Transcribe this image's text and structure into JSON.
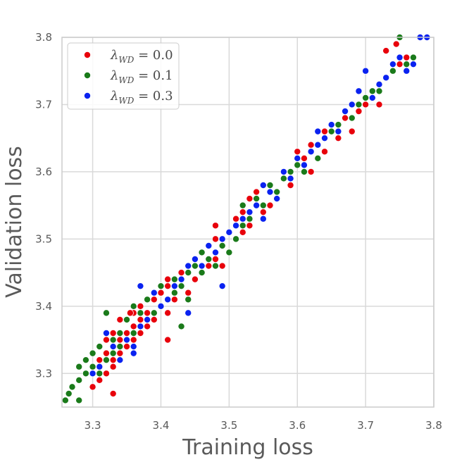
{
  "chart_data": {
    "type": "scatter",
    "title": "",
    "xlabel": "Training loss",
    "ylabel": "Validation loss",
    "xlim": [
      3.255,
      3.8
    ],
    "ylim": [
      3.25,
      3.8
    ],
    "xticks": [
      "3.3",
      "3.4",
      "3.5",
      "3.6",
      "3.7",
      "3.8"
    ],
    "yticks": [
      "3.3",
      "3.4",
      "3.5",
      "3.6",
      "3.7",
      "3.8"
    ],
    "grid": true,
    "legend_position": "top-left",
    "series": [
      {
        "name": "λ_WD = 0.0",
        "legend_symbol": "λ",
        "legend_sub": "WD",
        "legend_value": " = 0.0",
        "color": "#e8000b",
        "x": [
          3.27,
          3.28,
          3.28,
          3.29,
          3.29,
          3.3,
          3.3,
          3.3,
          3.3,
          3.31,
          3.31,
          3.31,
          3.31,
          3.32,
          3.32,
          3.32,
          3.32,
          3.33,
          3.33,
          3.33,
          3.33,
          3.34,
          3.34,
          3.34,
          3.34,
          3.35,
          3.35,
          3.35,
          3.36,
          3.36,
          3.36,
          3.37,
          3.37,
          3.37,
          3.38,
          3.38,
          3.38,
          3.39,
          3.39,
          3.4,
          3.4,
          3.41,
          3.41,
          3.41,
          3.42,
          3.42,
          3.43,
          3.43,
          3.44,
          3.44,
          3.45,
          3.45,
          3.46,
          3.46,
          3.47,
          3.47,
          3.48,
          3.48,
          3.48,
          3.49,
          3.49,
          3.5,
          3.5,
          3.51,
          3.51,
          3.52,
          3.52,
          3.53,
          3.53,
          3.54,
          3.54,
          3.55,
          3.55,
          3.56,
          3.56,
          3.57,
          3.58,
          3.58,
          3.59,
          3.6,
          3.6,
          3.61,
          3.62,
          3.62,
          3.63,
          3.64,
          3.64,
          3.65,
          3.66,
          3.67,
          3.68,
          3.69,
          3.7,
          3.71,
          3.72,
          3.73,
          3.73,
          3.74,
          3.745,
          3.75,
          3.76,
          3.41,
          3.33,
          3.355
        ],
        "y": [
          3.28,
          3.29,
          3.31,
          3.3,
          3.32,
          3.28,
          3.3,
          3.31,
          3.33,
          3.29,
          3.31,
          3.32,
          3.34,
          3.3,
          3.32,
          3.33,
          3.35,
          3.31,
          3.32,
          3.34,
          3.36,
          3.33,
          3.35,
          3.36,
          3.38,
          3.34,
          3.36,
          3.38,
          3.35,
          3.37,
          3.39,
          3.36,
          3.38,
          3.4,
          3.37,
          3.39,
          3.41,
          3.38,
          3.41,
          3.4,
          3.42,
          3.39,
          3.43,
          3.35,
          3.41,
          3.44,
          3.43,
          3.45,
          3.42,
          3.46,
          3.44,
          3.47,
          3.45,
          3.48,
          3.46,
          3.49,
          3.47,
          3.5,
          3.52,
          3.46,
          3.5,
          3.48,
          3.51,
          3.5,
          3.53,
          3.51,
          3.54,
          3.52,
          3.56,
          3.55,
          3.57,
          3.54,
          3.58,
          3.55,
          3.58,
          3.57,
          3.59,
          3.6,
          3.58,
          3.61,
          3.63,
          3.62,
          3.6,
          3.64,
          3.64,
          3.63,
          3.66,
          3.67,
          3.65,
          3.68,
          3.66,
          3.69,
          3.7,
          3.72,
          3.7,
          3.74,
          3.78,
          3.75,
          3.79,
          3.76,
          3.77,
          3.44,
          3.27,
          3.39
        ]
      },
      {
        "name": "λ_WD = 0.1",
        "legend_symbol": "λ",
        "legend_sub": "WD",
        "legend_value": " = 0.1",
        "color": "#1a7a1a",
        "x": [
          3.26,
          3.265,
          3.27,
          3.28,
          3.28,
          3.29,
          3.29,
          3.3,
          3.3,
          3.31,
          3.31,
          3.32,
          3.32,
          3.33,
          3.33,
          3.34,
          3.34,
          3.35,
          3.35,
          3.36,
          3.36,
          3.37,
          3.37,
          3.38,
          3.38,
          3.39,
          3.39,
          3.4,
          3.4,
          3.41,
          3.42,
          3.42,
          3.43,
          3.44,
          3.44,
          3.45,
          3.46,
          3.46,
          3.47,
          3.48,
          3.49,
          3.5,
          3.5,
          3.51,
          3.52,
          3.52,
          3.53,
          3.54,
          3.55,
          3.56,
          3.57,
          3.58,
          3.59,
          3.6,
          3.61,
          3.62,
          3.63,
          3.64,
          3.65,
          3.66,
          3.67,
          3.68,
          3.69,
          3.7,
          3.71,
          3.72,
          3.73,
          3.74,
          3.75,
          3.75,
          3.76,
          3.77,
          3.43,
          3.32,
          3.28
        ],
        "y": [
          3.26,
          3.27,
          3.28,
          3.29,
          3.31,
          3.3,
          3.32,
          3.31,
          3.33,
          3.3,
          3.34,
          3.32,
          3.39,
          3.33,
          3.35,
          3.34,
          3.36,
          3.35,
          3.38,
          3.36,
          3.4,
          3.37,
          3.39,
          3.38,
          3.41,
          3.39,
          3.42,
          3.4,
          3.43,
          3.41,
          3.42,
          3.44,
          3.43,
          3.45,
          3.41,
          3.46,
          3.45,
          3.48,
          3.47,
          3.46,
          3.49,
          3.48,
          3.51,
          3.5,
          3.52,
          3.55,
          3.53,
          3.56,
          3.55,
          3.58,
          3.57,
          3.59,
          3.6,
          3.61,
          3.6,
          3.63,
          3.62,
          3.65,
          3.66,
          3.67,
          3.69,
          3.68,
          3.7,
          3.71,
          3.72,
          3.72,
          3.74,
          3.75,
          3.77,
          3.8,
          3.76,
          3.77,
          3.37,
          3.36,
          3.26
        ]
      },
      {
        "name": "λ_WD = 0.3",
        "legend_symbol": "λ",
        "legend_sub": "WD",
        "legend_value": " = 0.3",
        "color": "#0a22f0",
        "x": [
          3.3,
          3.31,
          3.32,
          3.33,
          3.34,
          3.35,
          3.36,
          3.37,
          3.37,
          3.38,
          3.39,
          3.4,
          3.41,
          3.42,
          3.43,
          3.44,
          3.45,
          3.46,
          3.47,
          3.48,
          3.49,
          3.5,
          3.51,
          3.52,
          3.53,
          3.54,
          3.55,
          3.56,
          3.57,
          3.58,
          3.59,
          3.6,
          3.61,
          3.62,
          3.63,
          3.64,
          3.65,
          3.66,
          3.67,
          3.68,
          3.69,
          3.7,
          3.71,
          3.72,
          3.73,
          3.74,
          3.75,
          3.76,
          3.77,
          3.78,
          3.79,
          3.36,
          3.44,
          3.55,
          3.49,
          3.63
        ],
        "y": [
          3.3,
          3.31,
          3.36,
          3.34,
          3.32,
          3.35,
          3.34,
          3.43,
          3.37,
          3.38,
          3.42,
          3.4,
          3.41,
          3.43,
          3.44,
          3.46,
          3.47,
          3.46,
          3.49,
          3.48,
          3.5,
          3.51,
          3.52,
          3.53,
          3.54,
          3.55,
          3.58,
          3.57,
          3.56,
          3.6,
          3.59,
          3.62,
          3.61,
          3.63,
          3.64,
          3.65,
          3.67,
          3.66,
          3.69,
          3.7,
          3.72,
          3.75,
          3.71,
          3.73,
          3.74,
          3.76,
          3.77,
          3.75,
          3.76,
          3.8,
          3.8,
          3.33,
          3.39,
          3.53,
          3.43,
          3.66
        ]
      }
    ]
  }
}
